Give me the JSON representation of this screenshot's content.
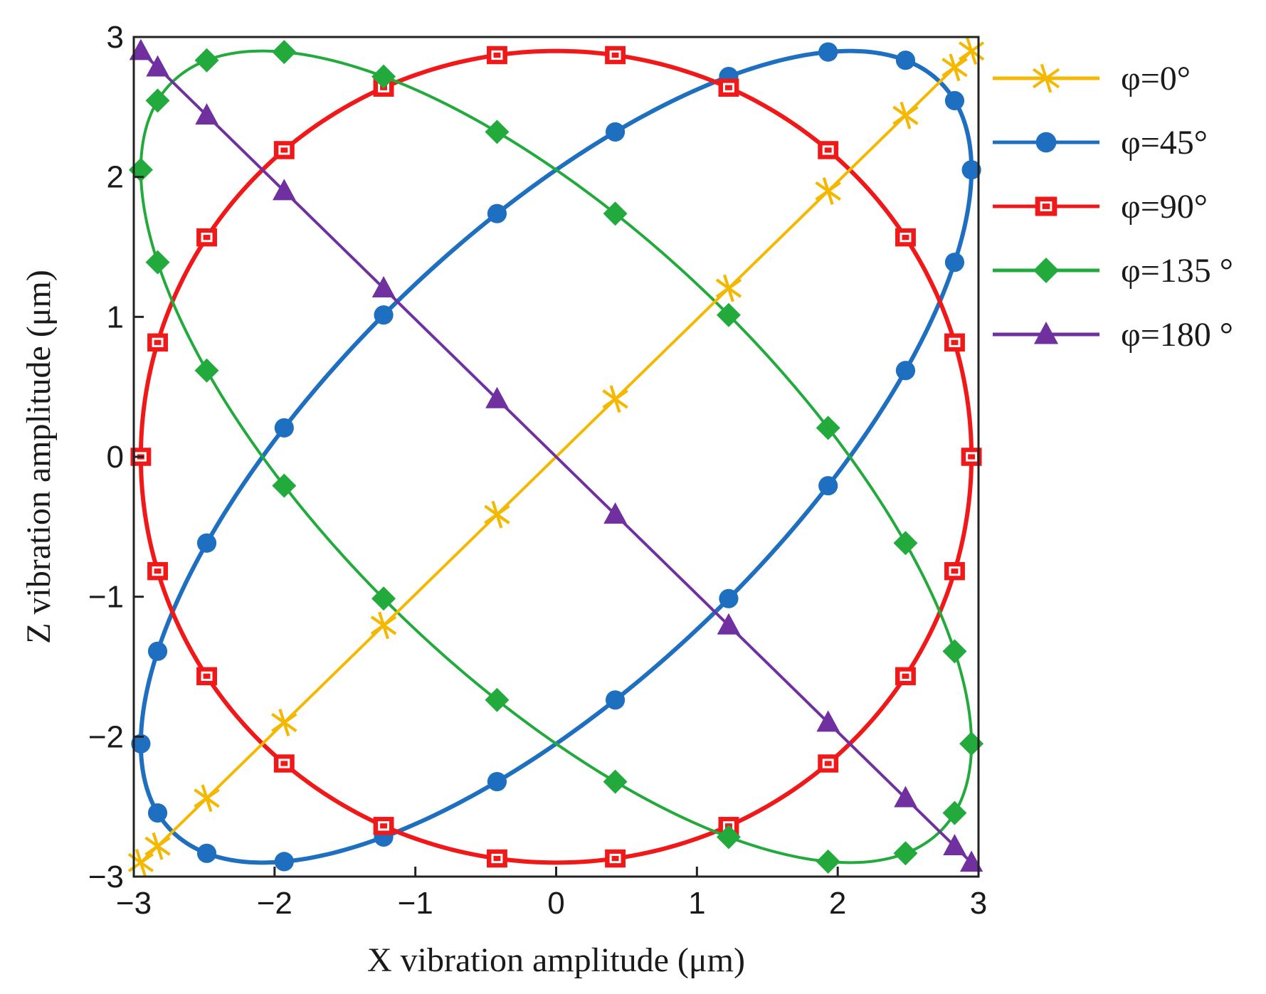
{
  "chart_data": {
    "type": "line",
    "xlabel": "X vibration amplitude (μm)",
    "ylabel": "Z vibration amplitude (μm)",
    "xlim": [
      -3,
      3
    ],
    "ylim": [
      -3,
      3
    ],
    "xticks": [
      -3,
      -2,
      -1,
      0,
      1,
      2,
      3
    ],
    "yticks": [
      -3,
      -2,
      -1,
      0,
      1,
      2,
      3
    ],
    "xtick_labels": [
      "−3",
      "−2",
      "−1",
      "0",
      "1",
      "2",
      "3"
    ],
    "ytick_labels": [
      "−3",
      "−2",
      "−1",
      "0",
      "1",
      "2",
      "3"
    ],
    "grid": false,
    "legend_position": "right",
    "amplitude_x": 2.95,
    "amplitude_z": 2.9,
    "series": [
      {
        "name": "φ=0°",
        "phase_deg": 0,
        "color": "#F5B800",
        "marker": "x-cross",
        "line_width": 4
      },
      {
        "name": "φ=45°",
        "phase_deg": 45,
        "color": "#1F6FC0",
        "marker": "circle",
        "line_width": 6
      },
      {
        "name": "φ=90°",
        "phase_deg": 90,
        "color": "#F01818",
        "marker": "square",
        "line_width": 6
      },
      {
        "name": "φ=135 °",
        "phase_deg": 135,
        "color": "#22AA3C",
        "marker": "diamond",
        "line_width": 4
      },
      {
        "name": "φ=180 °",
        "phase_deg": 180,
        "color": "#7030A0",
        "marker": "triangle",
        "line_width": 4
      }
    ]
  }
}
